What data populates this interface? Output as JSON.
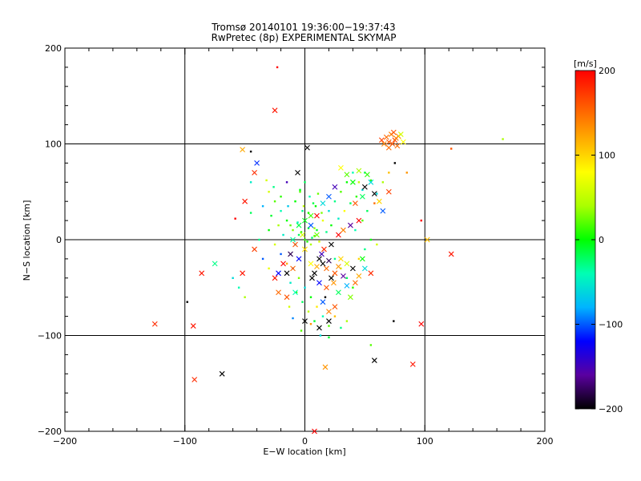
{
  "chart_data": {
    "type": "scatter",
    "title": "Tromsø 20140101 19:36:00−19:37:43",
    "subtitle": "RwPretec (8p) EXPERIMENTAL SKYMAP",
    "xlabel": "E−W location [km]",
    "ylabel": "N−S location [km]",
    "xlim": [
      -200,
      200
    ],
    "ylim": [
      -200,
      200
    ],
    "x_ticks": [
      "−200",
      "−100",
      "0",
      "100",
      "200"
    ],
    "y_ticks": [
      "−200",
      "−100",
      "0",
      "100",
      "200"
    ],
    "grid": true,
    "colorbar": {
      "label": "[m/s]",
      "range": [
        -200,
        200
      ],
      "ticks": [
        "−200",
        "−100",
        "0",
        "100",
        "200"
      ],
      "colors": [
        "#000000",
        "#5a00a0",
        "#0000ff",
        "#00b4ff",
        "#00ffb4",
        "#00ff00",
        "#aaff00",
        "#ffff00",
        "#ffaa00",
        "#ff5500",
        "#ff0000"
      ],
      "placement": "right"
    },
    "points": [
      [
        -23,
        180,
        200,
        "dot"
      ],
      [
        -25,
        135,
        190,
        "x"
      ],
      [
        165,
        105,
        40,
        "dot"
      ],
      [
        122,
        95,
        160,
        "dot"
      ],
      [
        68,
        107,
        150,
        "x"
      ],
      [
        70,
        102,
        160,
        "x"
      ],
      [
        72,
        110,
        140,
        "x"
      ],
      [
        75,
        104,
        170,
        "x"
      ],
      [
        77,
        98,
        150,
        "x"
      ],
      [
        66,
        100,
        140,
        "x"
      ],
      [
        74,
        112,
        160,
        "x"
      ],
      [
        78,
        108,
        130,
        "x"
      ],
      [
        70,
        96,
        150,
        "x"
      ],
      [
        64,
        104,
        170,
        "x"
      ],
      [
        73,
        100,
        160,
        "x"
      ],
      [
        76,
        106,
        140,
        "x"
      ],
      [
        80,
        110,
        60,
        "x"
      ],
      [
        82,
        102,
        80,
        "x"
      ],
      [
        2,
        96,
        -200,
        "x"
      ],
      [
        -52,
        94,
        120,
        "x"
      ],
      [
        -45,
        92,
        -200,
        "dot"
      ],
      [
        -40,
        80,
        -110,
        "x"
      ],
      [
        -42,
        70,
        180,
        "x"
      ],
      [
        -15,
        60,
        -150,
        "dot"
      ],
      [
        -6,
        70,
        -200,
        "x"
      ],
      [
        -50,
        40,
        190,
        "x"
      ],
      [
        -58,
        22,
        200,
        "dot"
      ],
      [
        -45,
        28,
        -20,
        "dot"
      ],
      [
        -30,
        50,
        60,
        "dot"
      ],
      [
        -25,
        40,
        20,
        "dot"
      ],
      [
        -20,
        30,
        -40,
        "dot"
      ],
      [
        -15,
        20,
        0,
        "dot"
      ],
      [
        -10,
        10,
        30,
        "dot"
      ],
      [
        -5,
        5,
        -20,
        "dot"
      ],
      [
        0,
        0,
        10,
        "dot"
      ],
      [
        5,
        -5,
        40,
        "dot"
      ],
      [
        10,
        10,
        -10,
        "dot"
      ],
      [
        15,
        20,
        70,
        "dot"
      ],
      [
        20,
        30,
        -60,
        "dot"
      ],
      [
        25,
        40,
        -30,
        "dot"
      ],
      [
        30,
        50,
        20,
        "dot"
      ],
      [
        35,
        60,
        0,
        "dot"
      ],
      [
        40,
        70,
        -40,
        "dot"
      ],
      [
        45,
        60,
        50,
        "dot"
      ],
      [
        50,
        70,
        -20,
        "dot"
      ],
      [
        55,
        62,
        10,
        "dot"
      ],
      [
        -8,
        40,
        0,
        "dot"
      ],
      [
        -2,
        30,
        -30,
        "dot"
      ],
      [
        -12,
        15,
        20,
        "dot"
      ],
      [
        -18,
        5,
        -50,
        "dot"
      ],
      [
        -8,
        -5,
        -70,
        "dot"
      ],
      [
        3,
        12,
        -10,
        "dot"
      ],
      [
        8,
        4,
        20,
        "dot"
      ],
      [
        12,
        -2,
        60,
        "dot"
      ],
      [
        18,
        8,
        -30,
        "dot"
      ],
      [
        22,
        15,
        0,
        "dot"
      ],
      [
        28,
        22,
        -50,
        "dot"
      ],
      [
        33,
        30,
        80,
        "dot"
      ],
      [
        38,
        38,
        -20,
        "dot"
      ],
      [
        43,
        45,
        10,
        "dot"
      ],
      [
        48,
        52,
        -60,
        "dot"
      ],
      [
        -35,
        35,
        -80,
        "dot"
      ],
      [
        -28,
        25,
        -10,
        "dot"
      ],
      [
        -22,
        15,
        40,
        "dot"
      ],
      [
        -30,
        10,
        0,
        "dot"
      ],
      [
        -38,
        0,
        -30,
        "dot"
      ],
      [
        -25,
        -5,
        60,
        "dot"
      ],
      [
        -20,
        -15,
        -100,
        "dot"
      ],
      [
        -15,
        -25,
        120,
        "dot"
      ],
      [
        -10,
        -30,
        -150,
        "dot"
      ],
      [
        -5,
        -40,
        30,
        "dot"
      ],
      [
        0,
        -50,
        -60,
        "dot"
      ],
      [
        5,
        -60,
        0,
        "dot"
      ],
      [
        10,
        -70,
        90,
        "dot"
      ],
      [
        15,
        -80,
        -40,
        "dot"
      ],
      [
        20,
        -90,
        20,
        "dot"
      ],
      [
        8,
        -85,
        -10,
        "dot"
      ],
      [
        3,
        -75,
        50,
        "dot"
      ],
      [
        -2,
        -65,
        -20,
        "dot"
      ],
      [
        -7,
        -55,
        10,
        "dot"
      ],
      [
        -12,
        -45,
        -50,
        "dot"
      ],
      [
        25,
        -20,
        -30,
        "dot"
      ],
      [
        30,
        -30,
        60,
        "dot"
      ],
      [
        35,
        -40,
        -20,
        "dot"
      ],
      [
        40,
        -50,
        10,
        "dot"
      ],
      [
        45,
        -20,
        100,
        "dot"
      ],
      [
        50,
        -10,
        -30,
        "dot"
      ],
      [
        55,
        0,
        0,
        "dot"
      ],
      [
        60,
        -5,
        60,
        "dot"
      ],
      [
        42,
        10,
        -40,
        "dot"
      ],
      [
        48,
        20,
        20,
        "dot"
      ],
      [
        52,
        30,
        -20,
        "dot"
      ],
      [
        58,
        38,
        150,
        "dot"
      ],
      [
        60,
        48,
        -60,
        "dot"
      ],
      [
        65,
        60,
        40,
        "dot"
      ],
      [
        70,
        70,
        110,
        "dot"
      ],
      [
        75,
        80,
        -200,
        "dot"
      ],
      [
        85,
        70,
        130,
        "dot"
      ],
      [
        0,
        60,
        -20,
        "dot"
      ],
      [
        -4,
        50,
        20,
        "dot"
      ],
      [
        4,
        45,
        -40,
        "dot"
      ],
      [
        9,
        35,
        0,
        "dot"
      ],
      [
        14,
        28,
        30,
        "dot"
      ],
      [
        -14,
        35,
        -70,
        "dot"
      ],
      [
        -20,
        45,
        10,
        "dot"
      ],
      [
        -26,
        55,
        -30,
        "dot"
      ],
      [
        -32,
        62,
        60,
        "dot"
      ],
      [
        -45,
        60,
        -50,
        "dot"
      ],
      [
        12,
        -20,
        -200,
        "x"
      ],
      [
        15,
        -25,
        -200,
        "x"
      ],
      [
        18,
        -30,
        150,
        "x"
      ],
      [
        10,
        -28,
        120,
        "x"
      ],
      [
        20,
        -22,
        -180,
        "x"
      ],
      [
        8,
        -35,
        -200,
        "x"
      ],
      [
        25,
        -35,
        160,
        "x"
      ],
      [
        14,
        -15,
        -150,
        "x"
      ],
      [
        5,
        -25,
        80,
        "x"
      ],
      [
        22,
        -40,
        -200,
        "x"
      ],
      [
        16,
        -10,
        180,
        "x"
      ],
      [
        28,
        -28,
        130,
        "x"
      ],
      [
        12,
        -45,
        -120,
        "x"
      ],
      [
        30,
        -20,
        100,
        "x"
      ],
      [
        35,
        -25,
        60,
        "x"
      ],
      [
        40,
        -30,
        -200,
        "x"
      ],
      [
        18,
        -50,
        160,
        "x"
      ],
      [
        6,
        -40,
        -200,
        "x"
      ],
      [
        24,
        -45,
        130,
        "x"
      ],
      [
        32,
        -38,
        -160,
        "x"
      ],
      [
        -5,
        -20,
        -120,
        "x"
      ],
      [
        -10,
        -30,
        150,
        "x"
      ],
      [
        -15,
        -35,
        -200,
        "x"
      ],
      [
        0,
        -10,
        100,
        "x"
      ],
      [
        -8,
        -55,
        -40,
        "x"
      ],
      [
        0,
        -85,
        -200,
        "x"
      ],
      [
        12,
        -92,
        -200,
        "x"
      ],
      [
        20,
        -85,
        -200,
        "x"
      ],
      [
        -15,
        -60,
        160,
        "x"
      ],
      [
        15,
        -65,
        -100,
        "x"
      ],
      [
        20,
        -75,
        140,
        "x"
      ],
      [
        25,
        -70,
        160,
        "x"
      ],
      [
        28,
        -55,
        -20,
        "x"
      ],
      [
        35,
        -48,
        -80,
        "x"
      ],
      [
        38,
        -60,
        30,
        "x"
      ],
      [
        42,
        -45,
        150,
        "x"
      ],
      [
        45,
        -38,
        120,
        "x"
      ],
      [
        50,
        -30,
        -60,
        "x"
      ],
      [
        55,
        -35,
        180,
        "x"
      ],
      [
        48,
        -20,
        0,
        "x"
      ],
      [
        22,
        -5,
        -200,
        "x"
      ],
      [
        28,
        5,
        200,
        "x"
      ],
      [
        32,
        10,
        140,
        "x"
      ],
      [
        38,
        15,
        -160,
        "x"
      ],
      [
        45,
        20,
        200,
        "x"
      ],
      [
        42,
        38,
        160,
        "x"
      ],
      [
        48,
        45,
        -20,
        "x"
      ],
      [
        50,
        55,
        -200,
        "x"
      ],
      [
        55,
        60,
        -60,
        "x"
      ],
      [
        58,
        48,
        -200,
        "x"
      ],
      [
        62,
        40,
        100,
        "x"
      ],
      [
        70,
        50,
        170,
        "x"
      ],
      [
        65,
        30,
        -100,
        "x"
      ],
      [
        40,
        60,
        0,
        "x"
      ],
      [
        35,
        68,
        20,
        "x"
      ],
      [
        45,
        72,
        40,
        "x"
      ],
      [
        52,
        68,
        10,
        "x"
      ],
      [
        30,
        75,
        80,
        "x"
      ],
      [
        25,
        55,
        -150,
        "x"
      ],
      [
        20,
        45,
        -100,
        "x"
      ],
      [
        15,
        38,
        -60,
        "x"
      ],
      [
        10,
        25,
        200,
        "x"
      ],
      [
        5,
        15,
        -100,
        "x"
      ],
      [
        -2,
        5,
        60,
        "x"
      ],
      [
        -8,
        -5,
        160,
        "x"
      ],
      [
        -12,
        -15,
        -180,
        "x"
      ],
      [
        -18,
        -25,
        200,
        "x"
      ],
      [
        -22,
        -35,
        -120,
        "x"
      ],
      [
        -25,
        -40,
        190,
        "x"
      ],
      [
        -22,
        -55,
        150,
        "x"
      ],
      [
        -52,
        -35,
        190,
        "x"
      ],
      [
        -75,
        -25,
        -30,
        "x"
      ],
      [
        -86,
        -35,
        190,
        "x"
      ],
      [
        -42,
        -10,
        170,
        "x"
      ],
      [
        -55,
        -50,
        -40,
        "dot"
      ],
      [
        -98,
        -65,
        -200,
        "dot"
      ],
      [
        -125,
        -88,
        180,
        "x"
      ],
      [
        -93,
        -90,
        190,
        "x"
      ],
      [
        -92,
        -146,
        180,
        "x"
      ],
      [
        -69,
        -140,
        -200,
        "x"
      ],
      [
        58,
        -126,
        -200,
        "x"
      ],
      [
        74,
        -85,
        -200,
        "dot"
      ],
      [
        97,
        -88,
        200,
        "x"
      ],
      [
        90,
        -130,
        190,
        "x"
      ],
      [
        122,
        -15,
        190,
        "x"
      ],
      [
        102,
        0,
        110,
        "x"
      ],
      [
        97,
        20,
        200,
        "dot"
      ],
      [
        55,
        -110,
        20,
        "dot"
      ],
      [
        17,
        -133,
        130,
        "x"
      ],
      [
        8,
        -200,
        200,
        "x"
      ],
      [
        -50,
        -60,
        40,
        "dot"
      ],
      [
        -60,
        -40,
        -60,
        "dot"
      ],
      [
        -35,
        -20,
        -100,
        "dot"
      ],
      [
        -30,
        -30,
        70,
        "dot"
      ],
      [
        0,
        20,
        -5,
        "x"
      ],
      [
        5,
        25,
        15,
        "x"
      ],
      [
        -5,
        15,
        -15,
        "x"
      ],
      [
        10,
        5,
        25,
        "x"
      ],
      [
        -10,
        0,
        -35,
        "x"
      ],
      [
        2,
        -2,
        5,
        "dot"
      ],
      [
        6,
        2,
        -25,
        "dot"
      ],
      [
        -3,
        8,
        15,
        "dot"
      ],
      [
        8,
        12,
        35,
        "dot"
      ],
      [
        -6,
        18,
        -45,
        "dot"
      ],
      [
        3,
        28,
        5,
        "dot"
      ],
      [
        -1,
        35,
        45,
        "dot"
      ],
      [
        7,
        38,
        -15,
        "dot"
      ],
      [
        11,
        48,
        25,
        "dot"
      ],
      [
        -4,
        52,
        -5,
        "dot"
      ],
      [
        17,
        -60,
        -200,
        "dot"
      ],
      [
        25,
        -80,
        110,
        "dot"
      ],
      [
        30,
        -92,
        -30,
        "dot"
      ],
      [
        35,
        -85,
        40,
        "dot"
      ],
      [
        13,
        -100,
        -60,
        "dot"
      ],
      [
        -3,
        -95,
        20,
        "dot"
      ],
      [
        -10,
        -82,
        -90,
        "dot"
      ],
      [
        -13,
        -70,
        60,
        "dot"
      ],
      [
        5,
        -88,
        130,
        "dot"
      ],
      [
        20,
        -102,
        -10,
        "dot"
      ]
    ]
  }
}
